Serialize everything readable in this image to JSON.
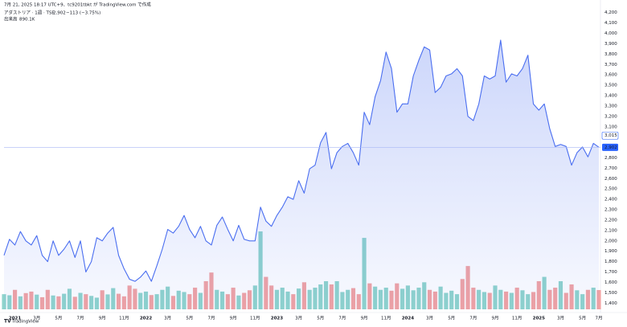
{
  "chart_data": {
    "type": "area",
    "caption": "7月 21, 2025 18:17 UTC+9、tc9201tbkt が TradingView.com で作成",
    "title": "アダストリア · 1週 · TSE",
    "last": {
      "value": 2902,
      "label": "2,902"
    },
    "change": "−113 (−3.75%)",
    "prev_close": {
      "value": 3015,
      "label": "3,015"
    },
    "volume_last": {
      "value": 890100,
      "label": "890.1K"
    },
    "brand": "TradingView",
    "categories": [
      null,
      null,
      "2021",
      null,
      null,
      null,
      "3月",
      null,
      null,
      null,
      "5月",
      null,
      null,
      null,
      "7月",
      null,
      null,
      null,
      "9月",
      null,
      null,
      null,
      "11月",
      null,
      null,
      null,
      "2022",
      null,
      null,
      null,
      "3月",
      null,
      null,
      null,
      "5月",
      null,
      null,
      null,
      "7月",
      null,
      null,
      null,
      "9月",
      null,
      null,
      null,
      "11月",
      null,
      null,
      null,
      "2023",
      null,
      null,
      null,
      "3月",
      null,
      null,
      null,
      "5月",
      null,
      null,
      null,
      "7月",
      null,
      null,
      null,
      "9月",
      null,
      null,
      null,
      "11月",
      null,
      null,
      null,
      "2024",
      null,
      null,
      null,
      "3月",
      null,
      null,
      null,
      "5月",
      null,
      null,
      null,
      "7月",
      null,
      null,
      null,
      "9月",
      null,
      null,
      null,
      "11月",
      null,
      null,
      null,
      "2025",
      null,
      null,
      null,
      "3月",
      null,
      null,
      null,
      "5月",
      null,
      null,
      "7月"
    ],
    "series": [
      {
        "name": "アダストリア · 1週 · TSE",
        "color": "#4a6ef0",
        "values": [
          1860,
          2015,
          1960,
          2090,
          2000,
          1960,
          2050,
          1860,
          1800,
          2000,
          1860,
          1920,
          2000,
          1840,
          2000,
          1700,
          1800,
          2030,
          2000,
          2075,
          2130,
          1860,
          1730,
          1630,
          1610,
          1650,
          1710,
          1610,
          1760,
          1920,
          2110,
          2075,
          2140,
          2245,
          2110,
          2030,
          2140,
          2000,
          1960,
          2150,
          2230,
          2110,
          2000,
          2150,
          2015,
          2000,
          2000,
          2325,
          2190,
          2140,
          2245,
          2325,
          2425,
          2400,
          2580,
          2460,
          2695,
          2730,
          2945,
          3045,
          2695,
          2850,
          2910,
          2940,
          2850,
          2730,
          3240,
          3120,
          3390,
          3545,
          3820,
          3660,
          3240,
          3320,
          3320,
          3590,
          3740,
          3870,
          3840,
          3430,
          3480,
          3590,
          3610,
          3660,
          3590,
          3200,
          3160,
          3320,
          3590,
          3560,
          3590,
          3935,
          3530,
          3610,
          3590,
          3660,
          3790,
          3320,
          3260,
          3320,
          3080,
          2910,
          2930,
          2910,
          2730,
          2850,
          2905,
          2810,
          2940,
          2902
        ]
      },
      {
        "name": "出来高",
        "up_color": "#8fd4cc",
        "down_color": "#f2a3a3",
        "values": [
          700000,
          650000,
          900000,
          600000,
          750000,
          820000,
          680000,
          560000,
          900000,
          640000,
          600000,
          720000,
          950000,
          580000,
          760000,
          700000,
          620000,
          540000,
          880000,
          690000,
          980000,
          720000,
          600000,
          1100000,
          950000,
          760000,
          820000,
          660000,
          700000,
          900000,
          1050000,
          620000,
          860000,
          800000,
          700000,
          1000000,
          760000,
          1300000,
          1700000,
          900000,
          820000,
          700000,
          1000000,
          640000,
          760000,
          880000,
          1100000,
          3600000,
          1500000,
          1100000,
          900000,
          1000000,
          820000,
          700000,
          960000,
          1250000,
          900000,
          1000000,
          1150000,
          1300000,
          1150000,
          1300000,
          800000,
          900000,
          980000,
          700000,
          3300000,
          1200000,
          1050000,
          900000,
          1000000,
          860000,
          1200000,
          950000,
          1100000,
          880000,
          1000000,
          1250000,
          900000,
          820000,
          1050000,
          760000,
          860000,
          700000,
          1400000,
          2000000,
          1000000,
          900000,
          800000,
          760000,
          1100000,
          900000,
          820000,
          760000,
          1000000,
          880000,
          700000,
          800000,
          1300000,
          1500000,
          900000,
          1000000,
          1300000,
          760000,
          1150000,
          880000,
          700000,
          900000,
          1000000,
          890100
        ]
      }
    ],
    "ylim": [
      1340,
      4260
    ],
    "yticks": [
      {
        "value": 1400,
        "label": "1,400"
      },
      {
        "value": 1500,
        "label": "1,500"
      },
      {
        "value": 1600,
        "label": "1,600"
      },
      {
        "value": 1700,
        "label": "1,700"
      },
      {
        "value": 1800,
        "label": "1,800"
      },
      {
        "value": 1900,
        "label": "1,900"
      },
      {
        "value": 2000,
        "label": "2,000"
      },
      {
        "value": 2100,
        "label": "2,100"
      },
      {
        "value": 2200,
        "label": "2,200"
      },
      {
        "value": 2300,
        "label": "2,300"
      },
      {
        "value": 2400,
        "label": "2,400"
      },
      {
        "value": 2500,
        "label": "2,500"
      },
      {
        "value": 2600,
        "label": "2,600"
      },
      {
        "value": 2700,
        "label": "2,700"
      },
      {
        "value": 2800,
        "label": "2,800"
      },
      {
        "value": 2900,
        "label": "2,900"
      },
      {
        "value": 3000,
        "label": "3,000"
      },
      {
        "value": 3100,
        "label": "3,100"
      },
      {
        "value": 3200,
        "label": "3,200"
      },
      {
        "value": 3300,
        "label": "3,300"
      },
      {
        "value": 3400,
        "label": "3,400"
      },
      {
        "value": 3500,
        "label": "3,500"
      },
      {
        "value": 3600,
        "label": "3,600"
      },
      {
        "value": 3700,
        "label": "3,700"
      },
      {
        "value": 3800,
        "label": "3,800"
      },
      {
        "value": 3900,
        "label": "3,900"
      },
      {
        "value": 4000,
        "label": "4,000"
      },
      {
        "value": 4100,
        "label": "4,100"
      },
      {
        "value": 4200,
        "label": "4,200"
      }
    ],
    "grid": false
  }
}
